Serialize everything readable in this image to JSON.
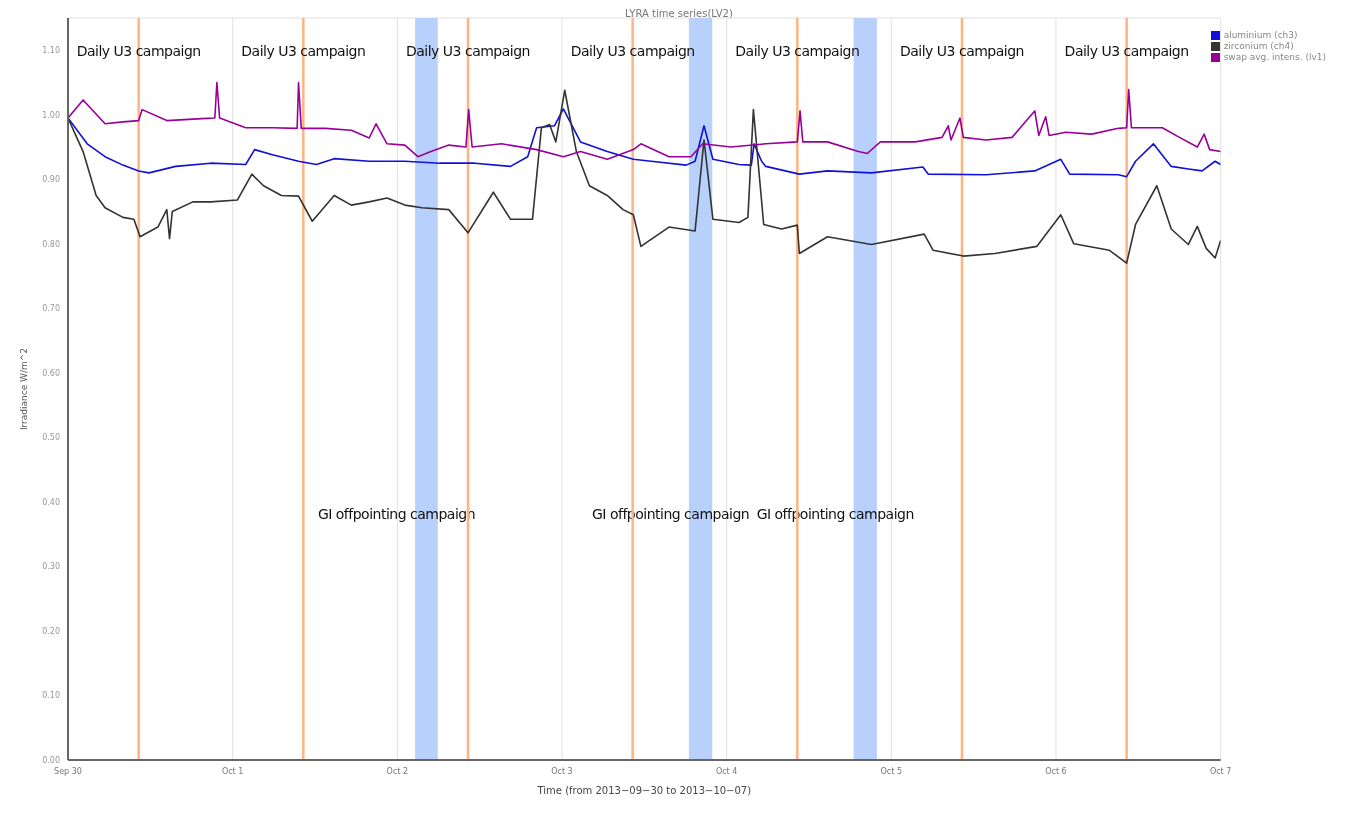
{
  "chart_data": {
    "type": "line",
    "title": "LYRA time series(LV2)",
    "xlabel": "Time (from 2013−09−30 to 2013−10−07)",
    "ylabel": "Irradiance W/m^2",
    "xlim": [
      "2013-09-30",
      "2013-10-07"
    ],
    "xticks": [
      {
        "value": "2013-09-30",
        "label": "Sep 30"
      },
      {
        "value": "2013-10-01",
        "label": "Oct 1"
      },
      {
        "value": "2013-10-02",
        "label": "Oct 2"
      },
      {
        "value": "2013-10-03",
        "label": "Oct 3"
      },
      {
        "value": "2013-10-04",
        "label": "Oct 4"
      },
      {
        "value": "2013-10-05",
        "label": "Oct 5"
      },
      {
        "value": "2013-10-06",
        "label": "Oct 6"
      },
      {
        "value": "2013-10-07",
        "label": "Oct 7"
      }
    ],
    "ylim": [
      0,
      1.15
    ],
    "yticks": [
      {
        "value": 0,
        "label": "0.00"
      },
      {
        "value": 0.1,
        "label": "0.10"
      },
      {
        "value": 0.2,
        "label": "0.20"
      },
      {
        "value": 0.3,
        "label": "0.30"
      },
      {
        "value": 0.4,
        "label": "0.40"
      },
      {
        "value": 0.5,
        "label": "0.50"
      },
      {
        "value": 0.6,
        "label": "0.60"
      },
      {
        "value": 0.7,
        "label": "0.70"
      },
      {
        "value": 0.8,
        "label": "0.80"
      },
      {
        "value": 0.9,
        "label": "0.90"
      },
      {
        "value": 1.0,
        "label": "1.00"
      },
      {
        "value": 1.1,
        "label": "1.10"
      }
    ],
    "grid": true,
    "legend": "top right",
    "marker": "none",
    "line_style": "solid",
    "series": [
      {
        "name": "aluminium (ch3)",
        "color": "#1010d8",
        "x": [
          "2013-09-30T00:00",
          "2013-09-30T02:48",
          "2013-09-30T05:24",
          "2013-09-30T08:00",
          "2013-09-30T10:18",
          "2013-09-30T11:48",
          "2013-09-30T15:42",
          "2013-09-30T20:48",
          "2013-10-01T01:54",
          "2013-10-01T03:12",
          "2013-10-01T05:48",
          "2013-10-01T09:36",
          "2013-10-01T12:12",
          "2013-10-01T14:48",
          "2013-10-01T19:54",
          "2013-10-02T01:06",
          "2013-10-02T06:12",
          "2013-10-02T11:18",
          "2013-10-02T16:30",
          "2013-10-02T19:00",
          "2013-10-02T20:18",
          "2013-10-02T22:54",
          "2013-10-03T00:12",
          "2013-10-03T02:42",
          "2013-10-03T06:36",
          "2013-10-03T10:24",
          "2013-10-03T13:00",
          "2013-10-03T18:06",
          "2013-10-03T19:24",
          "2013-10-03T20:42",
          "2013-10-03T22:00",
          "2013-10-04T01:48",
          "2013-10-04T03:36",
          "2013-10-04T04:00",
          "2013-10-04T05:06",
          "2013-10-04T05:42",
          "2013-10-04T10:36",
          "2013-10-04T14:42",
          "2013-10-04T21:06",
          "2013-10-05T04:36",
          "2013-10-05T05:24",
          "2013-10-05T13:48",
          "2013-10-05T20:54",
          "2013-10-06T00:42",
          "2013-10-06T02:00",
          "2013-10-06T09:06",
          "2013-10-06T10:18",
          "2013-10-06T11:36",
          "2013-10-06T14:12",
          "2013-10-06T16:48",
          "2013-10-06T19:18",
          "2013-10-06T21:18",
          "2013-10-06T23:12",
          "2013-10-07T00:00"
        ],
        "values": [
          0.995,
          0.955,
          0.935,
          0.922,
          0.913,
          0.91,
          0.92,
          0.925,
          0.923,
          0.946,
          0.938,
          0.928,
          0.923,
          0.932,
          0.928,
          0.928,
          0.925,
          0.925,
          0.92,
          0.935,
          0.98,
          0.983,
          1.009,
          0.958,
          0.943,
          0.931,
          0.928,
          0.922,
          0.928,
          0.983,
          0.931,
          0.923,
          0.922,
          0.955,
          0.928,
          0.92,
          0.908,
          0.913,
          0.91,
          0.919,
          0.908,
          0.907,
          0.913,
          0.931,
          0.908,
          0.907,
          0.904,
          0.928,
          0.955,
          0.92,
          0.916,
          0.913,
          0.928,
          0.923
        ]
      },
      {
        "name": "zirconium (ch4)",
        "color": "#333333",
        "x": [
          "2013-09-30T00:00",
          "2013-09-30T02:12",
          "2013-09-30T04:06",
          "2013-09-30T05:24",
          "2013-09-30T08:00",
          "2013-09-30T09:36",
          "2013-09-30T10:30",
          "2013-09-30T13:06",
          "2013-09-30T14:24",
          "2013-09-30T14:48",
          "2013-09-30T15:12",
          "2013-09-30T18:12",
          "2013-09-30T20:48",
          "2013-10-01T00:42",
          "2013-10-01T02:48",
          "2013-10-01T04:30",
          "2013-10-01T07:06",
          "2013-10-01T09:36",
          "2013-10-01T11:36",
          "2013-10-01T14:48",
          "2013-10-01T17:18",
          "2013-10-01T19:54",
          "2013-10-01T22:30",
          "2013-10-02T01:06",
          "2013-10-02T03:36",
          "2013-10-02T07:30",
          "2013-10-02T10:18",
          "2013-10-02T14:00",
          "2013-10-02T16:30",
          "2013-10-02T19:42",
          "2013-10-02T21:00",
          "2013-10-02T22:12",
          "2013-10-02T23:06",
          "2013-10-03T00:24",
          "2013-10-03T02:06",
          "2013-10-03T04:00",
          "2013-10-03T06:36",
          "2013-10-03T08:54",
          "2013-10-03T10:24",
          "2013-10-03T11:30",
          "2013-10-03T15:36",
          "2013-10-03T19:24",
          "2013-10-03T20:42",
          "2013-10-03T22:00",
          "2013-10-04T01:48",
          "2013-10-04T03:06",
          "2013-10-04T03:54",
          "2013-10-04T05:24",
          "2013-10-04T08:00",
          "2013-10-04T10:18",
          "2013-10-04T10:36",
          "2013-10-04T14:42",
          "2013-10-04T21:06",
          "2013-10-05T04:48",
          "2013-10-05T06:06",
          "2013-10-05T10:30",
          "2013-10-05T15:06",
          "2013-10-05T21:12",
          "2013-10-06T00:42",
          "2013-10-06T02:36",
          "2013-10-06T07:48",
          "2013-10-06T10:18",
          "2013-10-06T11:36",
          "2013-10-06T14:42",
          "2013-10-06T16:48",
          "2013-10-06T19:18",
          "2013-10-06T20:36",
          "2013-10-06T21:54",
          "2013-10-06T23:12",
          "2013-10-07T00:00"
        ],
        "values": [
          0.995,
          0.943,
          0.875,
          0.856,
          0.841,
          0.838,
          0.811,
          0.826,
          0.853,
          0.808,
          0.85,
          0.865,
          0.865,
          0.868,
          0.908,
          0.89,
          0.875,
          0.874,
          0.835,
          0.875,
          0.86,
          0.865,
          0.871,
          0.86,
          0.856,
          0.853,
          0.817,
          0.88,
          0.838,
          0.838,
          0.98,
          0.985,
          0.958,
          1.038,
          0.943,
          0.89,
          0.875,
          0.853,
          0.845,
          0.796,
          0.826,
          0.82,
          0.961,
          0.838,
          0.833,
          0.841,
          1.008,
          0.83,
          0.823,
          0.829,
          0.785,
          0.811,
          0.799,
          0.815,
          0.79,
          0.781,
          0.785,
          0.796,
          0.845,
          0.8,
          0.79,
          0.77,
          0.83,
          0.89,
          0.823,
          0.799,
          0.827,
          0.793,
          0.778,
          0.805
        ]
      },
      {
        "name": "swap avg. intens. (lv1)",
        "color": "#990099",
        "x": [
          "2013-09-30T00:00",
          "2013-09-30T02:12",
          "2013-09-30T05:24",
          "2013-09-30T08:00",
          "2013-09-30T10:18",
          "2013-09-30T10:48",
          "2013-09-30T14:24",
          "2013-09-30T19:30",
          "2013-09-30T21:24",
          "2013-09-30T21:42",
          "2013-09-30T22:06",
          "2013-10-01T01:54",
          "2013-10-01T05:48",
          "2013-10-01T09:24",
          "2013-10-01T09:36",
          "2013-10-01T10:00",
          "2013-10-01T13:30",
          "2013-10-01T17:18",
          "2013-10-01T19:54",
          "2013-10-01T20:54",
          "2013-10-01T22:30",
          "2013-10-02T01:06",
          "2013-10-02T03:00",
          "2013-10-02T04:54",
          "2013-10-02T07:30",
          "2013-10-02T10:00",
          "2013-10-02T10:24",
          "2013-10-02T10:54",
          "2013-10-02T15:12",
          "2013-10-02T20:18",
          "2013-10-03T00:12",
          "2013-10-03T02:42",
          "2013-10-03T06:36",
          "2013-10-03T10:24",
          "2013-10-03T11:30",
          "2013-10-03T15:36",
          "2013-10-03T18:48",
          "2013-10-03T20:30",
          "2013-10-04T00:36",
          "2013-10-04T05:42",
          "2013-10-04T10:18",
          "2013-10-04T10:42",
          "2013-10-04T11:06",
          "2013-10-04T14:42",
          "2013-10-04T19:12",
          "2013-10-04T20:30",
          "2013-10-04T22:24",
          "2013-10-05T03:30",
          "2013-10-05T07:24",
          "2013-10-05T08:18",
          "2013-10-05T08:42",
          "2013-10-05T10:00",
          "2013-10-05T10:30",
          "2013-10-05T13:48",
          "2013-10-05T17:36",
          "2013-10-05T20:54",
          "2013-10-05T21:30",
          "2013-10-05T22:30",
          "2013-10-05T23:00",
          "2013-10-06T01:24",
          "2013-10-06T05:12",
          "2013-10-06T09:06",
          "2013-10-06T10:18",
          "2013-10-06T10:36",
          "2013-10-06T11:00",
          "2013-10-06T15:30",
          "2013-10-06T18:00",
          "2013-10-06T20:36",
          "2013-10-06T21:36",
          "2013-10-06T22:24",
          "2013-10-07T00:00"
        ],
        "values": [
          0.995,
          1.023,
          0.986,
          0.989,
          0.991,
          1.008,
          0.991,
          0.994,
          0.995,
          1.05,
          0.995,
          0.98,
          0.98,
          0.979,
          1.05,
          0.979,
          0.979,
          0.976,
          0.964,
          0.986,
          0.955,
          0.953,
          0.935,
          0.943,
          0.953,
          0.95,
          1.008,
          0.95,
          0.955,
          0.946,
          0.935,
          0.943,
          0.931,
          0.946,
          0.955,
          0.935,
          0.935,
          0.955,
          0.95,
          0.955,
          0.958,
          1.006,
          0.958,
          0.958,
          0.943,
          0.94,
          0.958,
          0.958,
          0.965,
          0.983,
          0.961,
          0.995,
          0.965,
          0.961,
          0.965,
          1.006,
          0.968,
          0.997,
          0.968,
          0.973,
          0.97,
          0.979,
          0.98,
          1.039,
          0.98,
          0.98,
          0.965,
          0.95,
          0.97,
          0.946,
          0.943
        ]
      }
    ],
    "ref_lines": [
      {
        "axis": "x",
        "value": "2013-09-30T10:18",
        "label": "Daily U3 campaign",
        "color": "#ffb380"
      },
      {
        "axis": "x",
        "value": "2013-10-01T10:18",
        "label": "Daily U3 campaign",
        "color": "#ffb380"
      },
      {
        "axis": "x",
        "value": "2013-10-02T10:18",
        "label": "Daily U3 campaign",
        "color": "#ffb380"
      },
      {
        "axis": "x",
        "value": "2013-10-03T10:18",
        "label": "Daily U3 campaign",
        "color": "#ffb380"
      },
      {
        "axis": "x",
        "value": "2013-10-04T10:18",
        "label": "Daily U3 campaign",
        "color": "#ffb380"
      },
      {
        "axis": "x",
        "value": "2013-10-05T10:18",
        "label": "Daily U3 campaign",
        "color": "#ffb380"
      },
      {
        "axis": "x",
        "value": "2013-10-06T10:18",
        "label": "Daily U3 campaign",
        "color": "#ffb380"
      }
    ],
    "bands": [
      {
        "axis": "x",
        "from": "2013-10-02T02:36",
        "to": "2013-10-02T05:54",
        "label": "GI offpointing campaign",
        "color": "#b8d0fc"
      },
      {
        "axis": "x",
        "from": "2013-10-03T18:30",
        "to": "2013-10-03T21:54",
        "label": "GI offpointing campaign",
        "color": "#b8d0fc"
      },
      {
        "axis": "x",
        "from": "2013-10-04T18:30",
        "to": "2013-10-04T21:54",
        "label": "GI offpointing campaign",
        "color": "#b8d0fc"
      }
    ]
  }
}
